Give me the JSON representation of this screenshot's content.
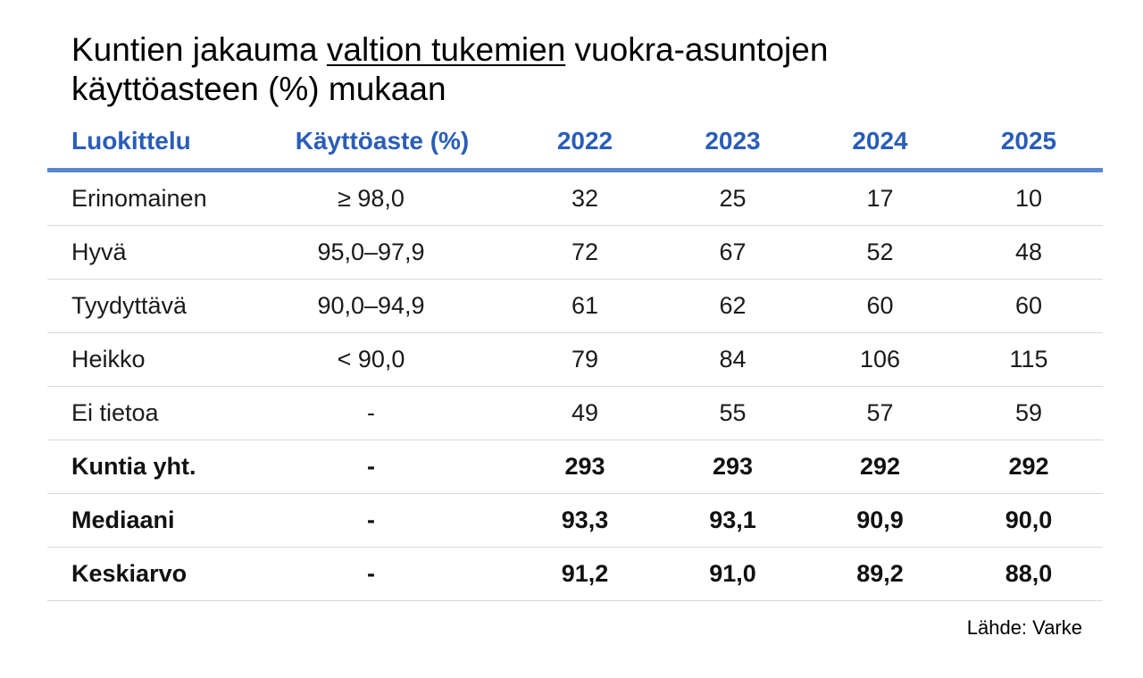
{
  "title": {
    "part1": "Kuntien jakauma ",
    "underlined": "valtion tukemien",
    "part2": " vuokra-asuntojen",
    "line2": "käyttöasteen (%) mukaan"
  },
  "table": {
    "headers": [
      "Luokittelu",
      "Käyttöaste (%)",
      "2022",
      "2023",
      "2024",
      "2025"
    ],
    "rows": [
      [
        "Erinomainen",
        "≥ 98,0",
        "32",
        "25",
        "17",
        "10"
      ],
      [
        "Hyvä",
        "95,0–97,9",
        "72",
        "67",
        "52",
        "48"
      ],
      [
        "Tyydyttävä",
        "90,0–94,9",
        "61",
        "62",
        "60",
        "60"
      ],
      [
        "Heikko",
        "< 90,0",
        "79",
        "84",
        "106",
        "115"
      ],
      [
        "Ei tietoa",
        "-",
        "49",
        "55",
        "57",
        "59"
      ],
      [
        "Kuntia yht.",
        "-",
        "293",
        "293",
        "292",
        "292"
      ],
      [
        "Mediaani",
        "-",
        "93,3",
        "93,1",
        "90,9",
        "90,0"
      ],
      [
        "Keskiarvo",
        "-",
        "91,2",
        "91,0",
        "89,2",
        "88,0"
      ]
    ]
  },
  "source": "Lähde: Varke",
  "colors": {
    "header_text": "#2a5db8",
    "header_rule": "#5b87d1",
    "row_rule": "#d8d8d8"
  }
}
